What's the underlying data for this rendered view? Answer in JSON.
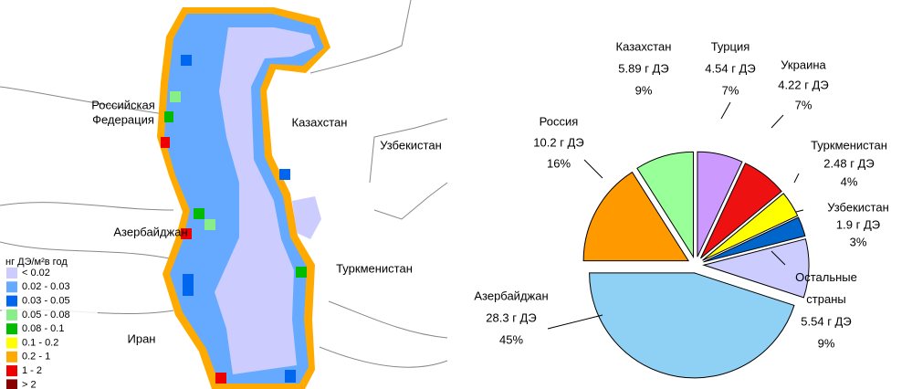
{
  "map": {
    "country_labels": [
      {
        "lines": [
          "Российская",
          "Федерация"
        ]
      },
      {
        "lines": [
          "Казахстан"
        ]
      },
      {
        "lines": [
          "Узбекистан"
        ]
      },
      {
        "lines": [
          "Азербайджан"
        ]
      },
      {
        "lines": [
          "Туркменистан"
        ]
      },
      {
        "lines": [
          "Иран"
        ]
      }
    ],
    "legend": {
      "title": "нг ДЭ/м²в год",
      "items": [
        {
          "label": "< 0.02",
          "color": "#ccccff"
        },
        {
          "label": "0.02 - 0.03",
          "color": "#66aaff"
        },
        {
          "label": "0.03 - 0.05",
          "color": "#0066ee"
        },
        {
          "label": "0.05 - 0.08",
          "color": "#88ee88"
        },
        {
          "label": "0.08 - 0.1",
          "color": "#00bb00"
        },
        {
          "label": "0.1 - 0.2",
          "color": "#ffff00"
        },
        {
          "label": "0.2 - 1",
          "color": "#ffaa00"
        },
        {
          "label": "1 - 2",
          "color": "#ee0000"
        },
        {
          "label": "> 2",
          "color": "#880000"
        }
      ]
    }
  },
  "chart_data": {
    "type": "pie",
    "categories": [
      "Азербайджан",
      "Россия",
      "Казахстан",
      "Турция",
      "Украина",
      "Туркменистан",
      "Узбекистан",
      "Остальные страны"
    ],
    "amounts": [
      "28.3 г ДЭ",
      "10.2 г ДЭ",
      "5.89 г ДЭ",
      "4.54 г ДЭ",
      "4.22 г ДЭ",
      "2.48 г ДЭ",
      "1.9 г ДЭ",
      "5.54 г ДЭ"
    ],
    "values": [
      45,
      16,
      9,
      7,
      7,
      4,
      3,
      9
    ],
    "value_labels": [
      "45%",
      "16%",
      "9%",
      "7%",
      "7%",
      "4%",
      "3%",
      "9%"
    ],
    "colors": [
      "#8fd0f5",
      "#ff9900",
      "#99ff99",
      "#cc99ff",
      "#ee1111",
      "#ffff00",
      "#0066cc",
      "#ccccff"
    ]
  }
}
